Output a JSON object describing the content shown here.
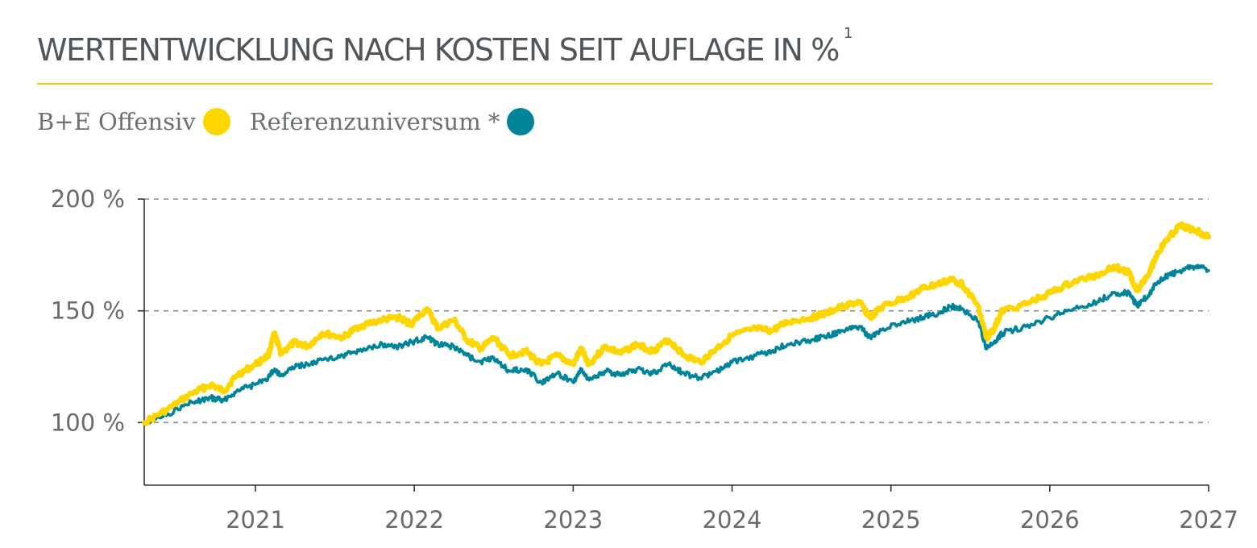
{
  "header": {
    "title": "WERTENTWICKLUNG NACH KOSTEN SEIT AUFLAGE IN %",
    "footnote": "1"
  },
  "colors": {
    "accent": "#f2c900",
    "fund": "#fdd600",
    "reference": "#00849a",
    "text": "#4f5559"
  },
  "legend": [
    {
      "label": "B+E Offensiv",
      "color": "#fdd600"
    },
    {
      "label": "Referenzuniversum *",
      "color": "#00849a"
    }
  ],
  "chart_data": {
    "type": "line",
    "xlabel": "",
    "ylabel": "",
    "xlim": [
      2020.3,
      2027.0
    ],
    "ylim": [
      72,
      200
    ],
    "grid": true,
    "legend_position": "top-left",
    "xticks": [
      {
        "value": 2021,
        "label": "2021"
      },
      {
        "value": 2022,
        "label": "2022"
      },
      {
        "value": 2023,
        "label": "2023"
      },
      {
        "value": 2024,
        "label": "2024"
      },
      {
        "value": 2025,
        "label": "2025"
      },
      {
        "value": 2026,
        "label": "2026"
      },
      {
        "value": 2027,
        "label": "2027"
      }
    ],
    "yticks": [
      {
        "value": 100,
        "label": "100 %"
      },
      {
        "value": 150,
        "label": "150 %"
      },
      {
        "value": 200,
        "label": "200 %"
      }
    ],
    "series": [
      {
        "name": "B+E Offensiv",
        "color": "#fdd600",
        "points": [
          [
            2020.3,
            100
          ],
          [
            2020.45,
            106
          ],
          [
            2020.6,
            113
          ],
          [
            2020.72,
            117
          ],
          [
            2020.8,
            114
          ],
          [
            2020.88,
            121
          ],
          [
            2021.0,
            126
          ],
          [
            2021.08,
            130
          ],
          [
            2021.12,
            140
          ],
          [
            2021.16,
            131
          ],
          [
            2021.25,
            136
          ],
          [
            2021.33,
            134
          ],
          [
            2021.42,
            140
          ],
          [
            2021.55,
            138
          ],
          [
            2021.65,
            143
          ],
          [
            2021.8,
            146
          ],
          [
            2021.9,
            147
          ],
          [
            2021.98,
            144
          ],
          [
            2022.08,
            151
          ],
          [
            2022.15,
            142
          ],
          [
            2022.25,
            146
          ],
          [
            2022.33,
            137
          ],
          [
            2022.42,
            133
          ],
          [
            2022.5,
            138
          ],
          [
            2022.6,
            130
          ],
          [
            2022.7,
            132
          ],
          [
            2022.8,
            126
          ],
          [
            2022.9,
            130
          ],
          [
            2023.0,
            126
          ],
          [
            2023.05,
            133
          ],
          [
            2023.1,
            126
          ],
          [
            2023.2,
            134
          ],
          [
            2023.3,
            131
          ],
          [
            2023.4,
            135
          ],
          [
            2023.5,
            132
          ],
          [
            2023.6,
            137
          ],
          [
            2023.7,
            130
          ],
          [
            2023.8,
            127
          ],
          [
            2023.9,
            133
          ],
          [
            2024.0,
            139
          ],
          [
            2024.15,
            142
          ],
          [
            2024.25,
            141
          ],
          [
            2024.35,
            145
          ],
          [
            2024.5,
            147
          ],
          [
            2024.6,
            149
          ],
          [
            2024.7,
            152
          ],
          [
            2024.8,
            154
          ],
          [
            2024.87,
            147
          ],
          [
            2024.95,
            152
          ],
          [
            2025.1,
            156
          ],
          [
            2025.2,
            160
          ],
          [
            2025.3,
            162
          ],
          [
            2025.38,
            164
          ],
          [
            2025.45,
            162
          ],
          [
            2025.55,
            152
          ],
          [
            2025.6,
            138
          ],
          [
            2025.65,
            142
          ],
          [
            2025.7,
            150
          ],
          [
            2025.85,
            153
          ],
          [
            2026.0,
            158
          ],
          [
            2026.15,
            163
          ],
          [
            2026.3,
            166
          ],
          [
            2026.4,
            170
          ],
          [
            2026.5,
            167
          ],
          [
            2026.55,
            159
          ],
          [
            2026.63,
            168
          ],
          [
            2026.68,
            176
          ],
          [
            2026.75,
            183
          ],
          [
            2026.82,
            188
          ],
          [
            2026.92,
            186
          ],
          [
            2027.0,
            183
          ]
        ]
      },
      {
        "name": "Referenzuniversum *",
        "color": "#00849a",
        "points": [
          [
            2020.3,
            100
          ],
          [
            2020.45,
            104
          ],
          [
            2020.6,
            109
          ],
          [
            2020.72,
            111
          ],
          [
            2020.8,
            110
          ],
          [
            2020.88,
            114
          ],
          [
            2021.0,
            117
          ],
          [
            2021.08,
            120
          ],
          [
            2021.12,
            124
          ],
          [
            2021.16,
            121
          ],
          [
            2021.25,
            125
          ],
          [
            2021.33,
            126
          ],
          [
            2021.42,
            128
          ],
          [
            2021.55,
            130
          ],
          [
            2021.65,
            132
          ],
          [
            2021.8,
            135
          ],
          [
            2021.9,
            134
          ],
          [
            2021.98,
            136
          ],
          [
            2022.08,
            138
          ],
          [
            2022.15,
            135
          ],
          [
            2022.25,
            134
          ],
          [
            2022.33,
            130
          ],
          [
            2022.42,
            127
          ],
          [
            2022.5,
            129
          ],
          [
            2022.6,
            123
          ],
          [
            2022.7,
            124
          ],
          [
            2022.8,
            118
          ],
          [
            2022.9,
            122
          ],
          [
            2023.0,
            118
          ],
          [
            2023.05,
            124
          ],
          [
            2023.1,
            119
          ],
          [
            2023.2,
            123
          ],
          [
            2023.3,
            121
          ],
          [
            2023.4,
            124
          ],
          [
            2023.5,
            122
          ],
          [
            2023.6,
            126
          ],
          [
            2023.7,
            122
          ],
          [
            2023.8,
            120
          ],
          [
            2023.9,
            123
          ],
          [
            2024.0,
            127
          ],
          [
            2024.15,
            130
          ],
          [
            2024.25,
            132
          ],
          [
            2024.35,
            135
          ],
          [
            2024.5,
            137
          ],
          [
            2024.6,
            139
          ],
          [
            2024.7,
            141
          ],
          [
            2024.8,
            143
          ],
          [
            2024.87,
            138
          ],
          [
            2024.95,
            142
          ],
          [
            2025.1,
            145
          ],
          [
            2025.2,
            147
          ],
          [
            2025.3,
            149
          ],
          [
            2025.38,
            152
          ],
          [
            2025.45,
            151
          ],
          [
            2025.55,
            145
          ],
          [
            2025.6,
            133
          ],
          [
            2025.65,
            136
          ],
          [
            2025.7,
            140
          ],
          [
            2025.85,
            143
          ],
          [
            2026.0,
            147
          ],
          [
            2026.15,
            151
          ],
          [
            2026.3,
            154
          ],
          [
            2026.4,
            158
          ],
          [
            2026.5,
            158
          ],
          [
            2026.55,
            152
          ],
          [
            2026.63,
            158
          ],
          [
            2026.68,
            163
          ],
          [
            2026.75,
            166
          ],
          [
            2026.82,
            168
          ],
          [
            2026.92,
            170
          ],
          [
            2027.0,
            168
          ]
        ]
      }
    ]
  }
}
